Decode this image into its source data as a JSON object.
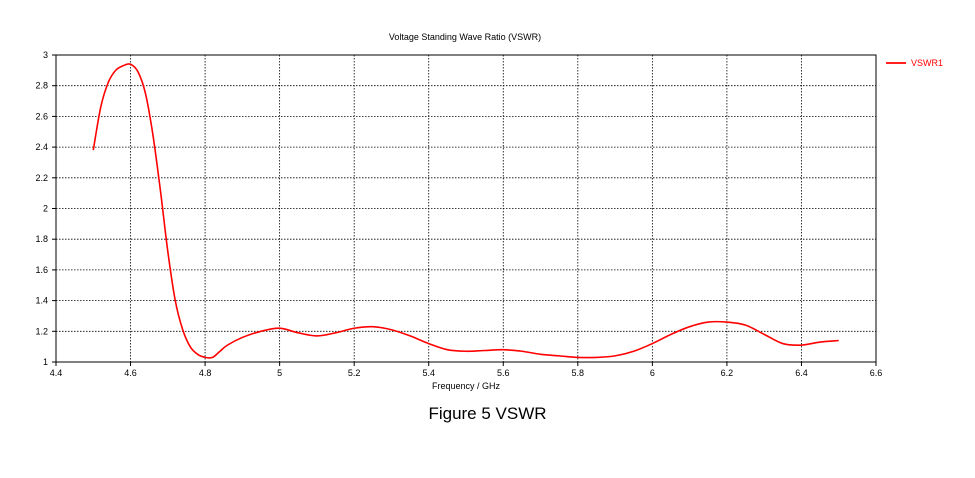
{
  "chart_data": {
    "type": "line",
    "title": "Voltage Standing Wave Ratio (VSWR)",
    "xlabel": "Frequency / GHz",
    "ylabel": "",
    "xlim": [
      4.4,
      6.6
    ],
    "ylim": [
      1,
      3
    ],
    "xticks": [
      "4.4",
      "4.6",
      "4.8",
      "5",
      "5.2",
      "5.4",
      "5.6",
      "5.8",
      "6",
      "6.2",
      "6.4",
      "6.6"
    ],
    "yticks": [
      "1",
      "1.2",
      "1.4",
      "1.6",
      "1.8",
      "2",
      "2.2",
      "2.4",
      "2.6",
      "2.8",
      "3"
    ],
    "grid": true,
    "legend_position": "top-right",
    "series": [
      {
        "name": "VSWR1",
        "color": "#ff0000",
        "x": [
          4.5,
          4.52,
          4.54,
          4.56,
          4.58,
          4.6,
          4.62,
          4.64,
          4.66,
          4.68,
          4.7,
          4.72,
          4.74,
          4.76,
          4.78,
          4.8,
          4.82,
          4.84,
          4.86,
          4.9,
          4.95,
          5.0,
          5.05,
          5.1,
          5.15,
          5.2,
          5.25,
          5.3,
          5.35,
          5.4,
          5.45,
          5.5,
          5.55,
          5.6,
          5.65,
          5.7,
          5.75,
          5.8,
          5.85,
          5.9,
          5.95,
          6.0,
          6.05,
          6.1,
          6.15,
          6.2,
          6.25,
          6.3,
          6.35,
          6.4,
          6.45,
          6.5
        ],
        "y": [
          2.38,
          2.66,
          2.82,
          2.9,
          2.93,
          2.94,
          2.89,
          2.75,
          2.48,
          2.12,
          1.72,
          1.4,
          1.21,
          1.1,
          1.05,
          1.03,
          1.03,
          1.07,
          1.11,
          1.16,
          1.2,
          1.22,
          1.19,
          1.17,
          1.19,
          1.22,
          1.23,
          1.21,
          1.17,
          1.12,
          1.08,
          1.07,
          1.075,
          1.08,
          1.07,
          1.05,
          1.04,
          1.03,
          1.03,
          1.04,
          1.07,
          1.12,
          1.18,
          1.23,
          1.26,
          1.26,
          1.24,
          1.18,
          1.12,
          1.11,
          1.13,
          1.14
        ]
      }
    ]
  },
  "caption": "Figure 5  VSWR"
}
